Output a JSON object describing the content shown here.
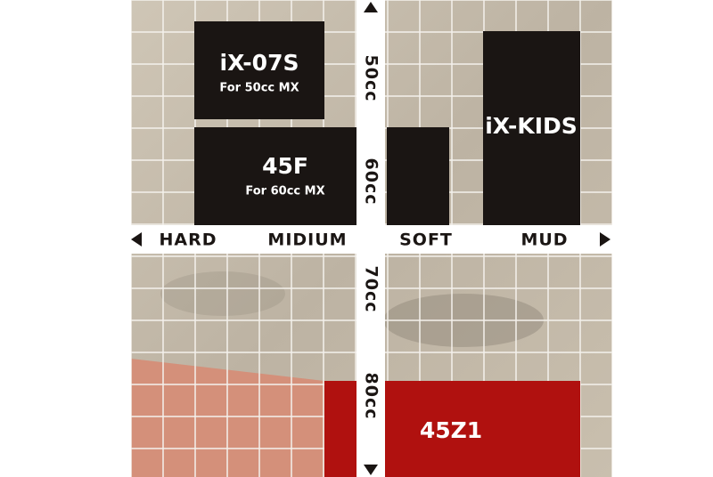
{
  "horizontal_axis": {
    "labels": [
      "HARD",
      "MIDIUM",
      "SOFT",
      "MUD"
    ]
  },
  "vertical_axis": {
    "labels": [
      "50cc",
      "60cc",
      "70cc",
      "80cc"
    ]
  },
  "products": [
    {
      "name": "iX-07S",
      "note": "For 50cc MX"
    },
    {
      "name": "45F",
      "note": "For 60cc MX"
    },
    {
      "name": "iX-KIDS"
    },
    {
      "name": "45Z1"
    }
  ]
}
